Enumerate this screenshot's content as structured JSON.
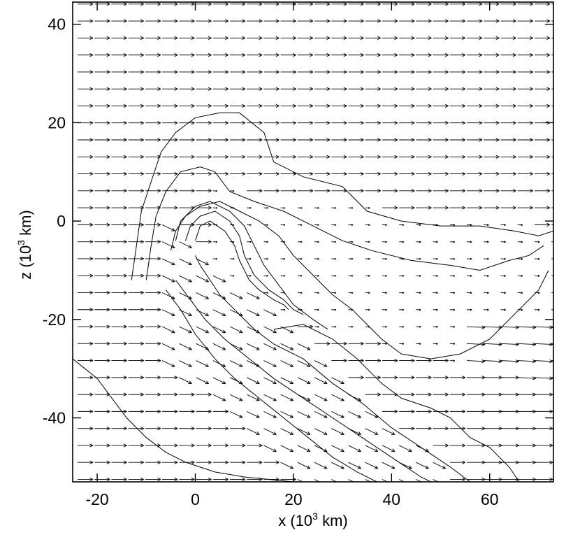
{
  "chart_data": {
    "type": "contour",
    "xlabel": "x (10",
    "xlabel_sup": "3",
    "xlabel_unit": " km)",
    "ylabel": "z (10",
    "ylabel_sup": "3",
    "ylabel_unit": " km)",
    "xlim": [
      -25,
      73
    ],
    "ylim": [
      -53,
      44.5
    ],
    "x_ticks": [
      -20,
      0,
      20,
      40,
      60
    ],
    "y_ticks": [
      -40,
      -20,
      0,
      20,
      40
    ],
    "x_tick_labels": [
      "-20",
      "0",
      "20",
      "40",
      "60"
    ],
    "y_tick_labels": [
      "-40",
      "-20",
      "0",
      "20",
      "40"
    ],
    "vector_field": {
      "description_units": "velocity arrows, data units",
      "x_start": -24,
      "x_step": 3.45,
      "z_start": -52.5,
      "z_step": 3.45,
      "free_stream_direction": "+x"
    },
    "contours": [
      {
        "level": 1,
        "points": [
          [
            -25,
            -28
          ],
          [
            -20,
            -32
          ],
          [
            -17,
            -36
          ],
          [
            -14,
            -40
          ],
          [
            -10,
            -44
          ],
          [
            -6,
            -47
          ],
          [
            -2,
            -49
          ],
          [
            4,
            -51
          ],
          [
            10,
            -52
          ],
          [
            20,
            -53
          ]
        ]
      },
      {
        "level": 2,
        "points": [
          [
            -13,
            -12
          ],
          [
            -12,
            -5
          ],
          [
            -11,
            2
          ],
          [
            -9,
            8
          ],
          [
            -7,
            14
          ],
          [
            -4,
            18
          ],
          [
            0,
            21
          ],
          [
            5,
            22
          ],
          [
            9,
            22
          ],
          [
            14,
            18
          ],
          [
            16,
            12
          ],
          [
            22,
            9
          ],
          [
            30,
            7
          ],
          [
            35,
            2
          ],
          [
            42,
            0
          ],
          [
            50,
            -1
          ],
          [
            58,
            -1
          ],
          [
            65,
            -2
          ],
          [
            70,
            -3
          ],
          [
            73,
            -2
          ]
        ]
      },
      {
        "level": 3,
        "points": [
          [
            -10,
            -12
          ],
          [
            -9,
            -5
          ],
          [
            -8,
            1
          ],
          [
            -6,
            6
          ],
          [
            -3,
            10
          ],
          [
            1,
            11
          ],
          [
            4,
            10
          ],
          [
            7,
            6
          ],
          [
            12,
            4
          ],
          [
            18,
            2
          ],
          [
            24,
            -1
          ],
          [
            30,
            -4
          ],
          [
            36,
            -6
          ],
          [
            44,
            -8
          ],
          [
            52,
            -9
          ],
          [
            58,
            -10
          ],
          [
            64,
            -8
          ],
          [
            68,
            -7
          ],
          [
            71,
            -5
          ]
        ]
      },
      {
        "level": 4,
        "points": [
          [
            -5,
            -6
          ],
          [
            -4,
            -2
          ],
          [
            -2,
            1
          ],
          [
            1,
            3
          ],
          [
            5,
            4
          ],
          [
            9,
            2
          ],
          [
            13,
            0
          ],
          [
            17,
            -3
          ],
          [
            20,
            -7
          ],
          [
            24,
            -11
          ],
          [
            28,
            -15
          ],
          [
            32,
            -18
          ],
          [
            35,
            -21
          ],
          [
            38,
            -24
          ],
          [
            42,
            -27
          ],
          [
            48,
            -28
          ],
          [
            54,
            -27
          ],
          [
            60,
            -24
          ],
          [
            65,
            -19
          ],
          [
            70,
            -14
          ],
          [
            72,
            -10
          ]
        ]
      },
      {
        "level": 5,
        "points": [
          [
            -4,
            -4
          ],
          [
            -3,
            0
          ],
          [
            0,
            3
          ],
          [
            3,
            4
          ],
          [
            7,
            2
          ],
          [
            10,
            -1
          ],
          [
            12,
            -5
          ],
          [
            14,
            -9
          ],
          [
            17,
            -13
          ],
          [
            20,
            -17
          ],
          [
            24,
            -20
          ],
          [
            27,
            -22
          ]
        ]
      },
      {
        "level": 6,
        "points": [
          [
            -2,
            -4
          ],
          [
            -1,
            -1
          ],
          [
            1,
            1
          ],
          [
            4,
            2
          ],
          [
            7,
            0
          ],
          [
            9,
            -3
          ],
          [
            10,
            -7
          ],
          [
            12,
            -11
          ],
          [
            15,
            -14
          ],
          [
            18,
            -16
          ],
          [
            20,
            -18
          ],
          [
            22,
            -19
          ]
        ]
      },
      {
        "level": 7,
        "points": [
          [
            0,
            -4
          ],
          [
            1,
            -1
          ],
          [
            3,
            0
          ],
          [
            6,
            -2
          ],
          [
            8,
            -5
          ],
          [
            9,
            -8
          ],
          [
            11,
            -12
          ],
          [
            13,
            -14
          ],
          [
            16,
            -16
          ],
          [
            18,
            -17
          ],
          [
            19,
            -18
          ]
        ]
      },
      {
        "level": 8,
        "points": [
          [
            0,
            -7
          ],
          [
            1,
            -9
          ],
          [
            3,
            -12
          ],
          [
            5,
            -15
          ],
          [
            8,
            -18
          ],
          [
            12,
            -22
          ],
          [
            16,
            -25
          ],
          [
            22,
            -28
          ],
          [
            28,
            -33
          ],
          [
            34,
            -37
          ],
          [
            40,
            -42
          ],
          [
            46,
            -46
          ],
          [
            52,
            -50
          ],
          [
            56,
            -53
          ]
        ]
      },
      {
        "level": 9,
        "points": [
          [
            -4,
            -12
          ],
          [
            -1,
            -16
          ],
          [
            2,
            -20
          ],
          [
            6,
            -24
          ],
          [
            11,
            -28
          ],
          [
            16,
            -32
          ],
          [
            22,
            -36
          ],
          [
            28,
            -40
          ],
          [
            34,
            -44
          ],
          [
            40,
            -48
          ],
          [
            46,
            -52
          ],
          [
            48,
            -53
          ]
        ]
      },
      {
        "level": 10,
        "points": [
          [
            -6,
            -14
          ],
          [
            -3,
            -18
          ],
          [
            0,
            -23
          ],
          [
            4,
            -28
          ],
          [
            8,
            -32
          ],
          [
            13,
            -36
          ],
          [
            18,
            -40
          ],
          [
            23,
            -44
          ],
          [
            28,
            -48
          ],
          [
            33,
            -51
          ],
          [
            37,
            -53
          ]
        ]
      },
      {
        "level": 11,
        "points": [
          [
            16,
            -22
          ],
          [
            22,
            -21
          ],
          [
            28,
            -24
          ],
          [
            33,
            -28
          ],
          [
            38,
            -33
          ],
          [
            42,
            -36
          ],
          [
            48,
            -38
          ],
          [
            52,
            -40
          ],
          [
            56,
            -44
          ],
          [
            60,
            -46
          ],
          [
            64,
            -50
          ],
          [
            66,
            -53
          ]
        ]
      }
    ]
  }
}
